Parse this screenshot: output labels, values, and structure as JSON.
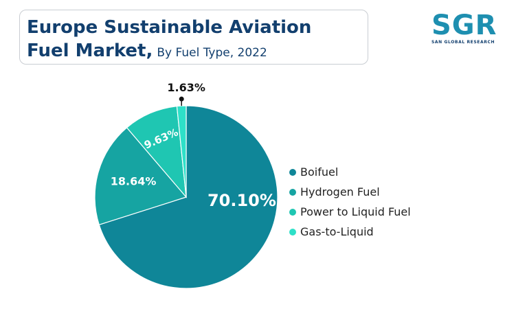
{
  "header": {
    "title_line1": "Europe Sustainable Aviation",
    "title_line2": "Fuel Market,",
    "subtitle": "By Fuel Type, 2022"
  },
  "logo": {
    "letters": "SGR",
    "subtext": "SAN GLOBAL RESEARCH"
  },
  "colors": {
    "title": "#123f6e",
    "logo": "#1e8fb0"
  },
  "chart_data": {
    "type": "pie",
    "title": "Europe Sustainable Aviation Fuel Market, By Fuel Type, 2022",
    "legend_position": "right",
    "slices": [
      {
        "name": "Boifuel",
        "value": 70.1,
        "label": "70.10%",
        "color": "#0f8698"
      },
      {
        "name": "Hydrogen Fuel",
        "value": 18.64,
        "label": "18.64%",
        "color": "#16a4a2"
      },
      {
        "name": "Power to Liquid Fuel",
        "value": 9.63,
        "label": "9.63%",
        "color": "#1fc6b2"
      },
      {
        "name": "Gas-to-Liquid",
        "value": 1.63,
        "label": "1.63%",
        "color": "#2ee0c8"
      }
    ]
  }
}
